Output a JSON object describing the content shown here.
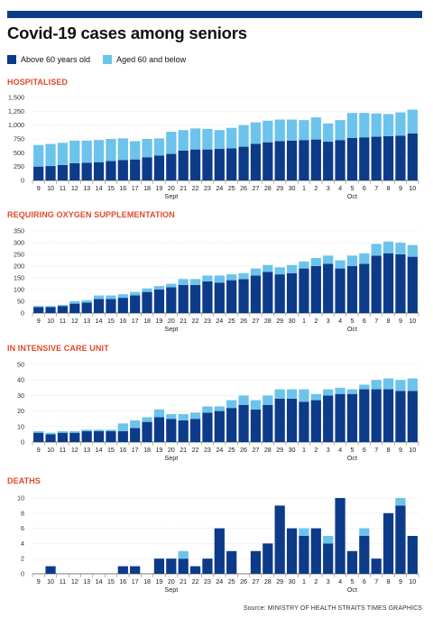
{
  "title": "Covid-19 cases among seniors",
  "legend": [
    {
      "label": "Above 60 years old",
      "color": "#0d3b8a"
    },
    {
      "label": "Aged 60 and below",
      "color": "#6cc3ec"
    }
  ],
  "source": "Source: MINISTRY OF HEALTH  STRAITS TIMES GRAPHICS",
  "chart_data": [
    {
      "type": "bar",
      "title": "HOSPITALISED",
      "stacked": true,
      "categories": [
        "9",
        "10",
        "11",
        "12",
        "13",
        "14",
        "15",
        "16",
        "17",
        "18",
        "19",
        "20",
        "21",
        "22",
        "23",
        "24",
        "25",
        "26",
        "27",
        "28",
        "29",
        "30",
        "1",
        "2",
        "3",
        "4",
        "5",
        "6",
        "7",
        "8",
        "9",
        "10"
      ],
      "month_labels": [
        {
          "label": "Sept",
          "at": "20"
        },
        {
          "label": "Oct",
          "at": "5"
        }
      ],
      "ylim": [
        0,
        1500
      ],
      "yticks": [
        0,
        250,
        500,
        750,
        1000,
        1250,
        1500
      ],
      "tick_labels": [
        "0",
        "250",
        "500",
        "750",
        "1,000",
        "1,250",
        "1,500"
      ],
      "series": [
        {
          "name": "Above 60 years old",
          "color": "#0d3b8a",
          "values": [
            250,
            260,
            280,
            310,
            320,
            330,
            350,
            370,
            380,
            420,
            450,
            480,
            540,
            560,
            560,
            570,
            580,
            610,
            660,
            690,
            710,
            720,
            730,
            740,
            700,
            730,
            770,
            780,
            790,
            800,
            810,
            850
          ]
        },
        {
          "name": "Aged 60 and below",
          "color": "#6cc3ec",
          "values": [
            390,
            400,
            400,
            410,
            400,
            400,
            400,
            390,
            330,
            330,
            310,
            400,
            370,
            380,
            370,
            340,
            370,
            390,
            390,
            390,
            390,
            380,
            360,
            400,
            330,
            360,
            450,
            440,
            420,
            400,
            420,
            430
          ]
        }
      ]
    },
    {
      "type": "bar",
      "title": "REQUIRING OXYGEN SUPPLEMENTATION",
      "stacked": true,
      "categories": [
        "9",
        "10",
        "11",
        "12",
        "13",
        "14",
        "15",
        "16",
        "17",
        "18",
        "19",
        "20",
        "21",
        "22",
        "23",
        "24",
        "25",
        "26",
        "27",
        "28",
        "29",
        "30",
        "1",
        "2",
        "3",
        "4",
        "5",
        "6",
        "7",
        "8",
        "9",
        "10"
      ],
      "month_labels": [
        {
          "label": "Sept",
          "at": "20"
        },
        {
          "label": "Oct",
          "at": "5"
        }
      ],
      "ylim": [
        0,
        350
      ],
      "yticks": [
        0,
        50,
        100,
        150,
        200,
        250,
        300,
        350
      ],
      "tick_labels": [
        "0",
        "50",
        "100",
        "150",
        "200",
        "250",
        "300",
        "350"
      ],
      "series": [
        {
          "name": "Above 60 years old",
          "color": "#0d3b8a",
          "values": [
            25,
            25,
            30,
            40,
            45,
            60,
            60,
            65,
            75,
            90,
            100,
            110,
            120,
            120,
            135,
            130,
            140,
            145,
            160,
            175,
            165,
            170,
            190,
            200,
            210,
            190,
            200,
            210,
            245,
            255,
            250,
            240
          ]
        },
        {
          "name": "Aged 60 and below",
          "color": "#6cc3ec",
          "values": [
            5,
            5,
            5,
            10,
            10,
            15,
            15,
            15,
            15,
            15,
            15,
            15,
            25,
            25,
            25,
            30,
            25,
            25,
            30,
            30,
            30,
            35,
            30,
            35,
            35,
            35,
            45,
            45,
            50,
            50,
            50,
            50
          ]
        }
      ]
    },
    {
      "type": "bar",
      "title": "IN INTENSIVE CARE UNIT",
      "stacked": true,
      "categories": [
        "9",
        "10",
        "11",
        "12",
        "13",
        "14",
        "15",
        "16",
        "17",
        "18",
        "19",
        "20",
        "21",
        "22",
        "23",
        "24",
        "25",
        "26",
        "27",
        "28",
        "29",
        "30",
        "1",
        "2",
        "3",
        "4",
        "5",
        "6",
        "7",
        "8",
        "9",
        "10"
      ],
      "month_labels": [
        {
          "label": "Sept",
          "at": "20"
        },
        {
          "label": "Oct",
          "at": "5"
        }
      ],
      "ylim": [
        0,
        50
      ],
      "yticks": [
        0,
        10,
        20,
        30,
        40,
        50
      ],
      "tick_labels": [
        "0",
        "10",
        "20",
        "30",
        "40",
        "50"
      ],
      "series": [
        {
          "name": "Above 60 years old",
          "color": "#0d3b8a",
          "values": [
            6,
            5,
            6,
            6,
            7,
            7,
            7,
            7,
            9,
            13,
            16,
            15,
            14,
            15,
            19,
            20,
            22,
            24,
            21,
            24,
            28,
            28,
            26,
            27,
            30,
            31,
            31,
            34,
            34,
            34,
            33,
            33
          ]
        },
        {
          "name": "Aged 60 and below",
          "color": "#6cc3ec",
          "values": [
            1,
            1,
            1,
            1,
            1,
            1,
            1,
            5,
            5,
            3,
            5,
            3,
            4,
            4,
            4,
            3,
            5,
            6,
            6,
            6,
            6,
            6,
            8,
            4,
            4,
            4,
            3,
            3,
            6,
            7,
            7,
            8
          ]
        }
      ]
    },
    {
      "type": "bar",
      "title": "DEATHS",
      "stacked": true,
      "categories": [
        "9",
        "10",
        "11",
        "12",
        "13",
        "14",
        "15",
        "16",
        "17",
        "18",
        "19",
        "20",
        "21",
        "22",
        "23",
        "24",
        "25",
        "26",
        "27",
        "28",
        "29",
        "30",
        "1",
        "2",
        "3",
        "4",
        "5",
        "6",
        "7",
        "8",
        "9",
        "10"
      ],
      "month_labels": [
        {
          "label": "Sept",
          "at": "20"
        },
        {
          "label": "Oct",
          "at": "5"
        }
      ],
      "ylim": [
        0,
        10
      ],
      "yticks": [
        0,
        2,
        4,
        6,
        8,
        10
      ],
      "tick_labels": [
        "0",
        "2",
        "4",
        "6",
        "8",
        "10"
      ],
      "series": [
        {
          "name": "Above 60 years old",
          "color": "#0d3b8a",
          "values": [
            0,
            1,
            0,
            0,
            0,
            0,
            0,
            1,
            1,
            0,
            2,
            2,
            2,
            1,
            2,
            6,
            3,
            0,
            3,
            4,
            9,
            6,
            5,
            6,
            4,
            10,
            3,
            5,
            2,
            8,
            9,
            5
          ]
        },
        {
          "name": "Aged 60 and below",
          "color": "#6cc3ec",
          "values": [
            0,
            0,
            0,
            0,
            0,
            0,
            0,
            0,
            0,
            0,
            0,
            0,
            1,
            0,
            0,
            0,
            0,
            0,
            0,
            0,
            0,
            0,
            1,
            0,
            1,
            0,
            0,
            1,
            0,
            0,
            1,
            0
          ]
        }
      ]
    }
  ]
}
